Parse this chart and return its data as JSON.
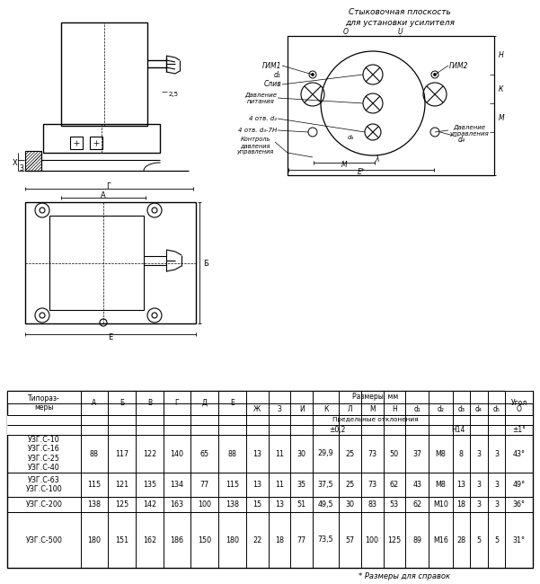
{
  "footnote": "* Размеры для справок",
  "rows": [
    [
      "УЗГ.С-10\nУЗГ.С-16\nУЗГ.С-25\nУЗГ.С-40",
      "88",
      "117",
      "122",
      "140",
      "65",
      "88",
      "13",
      "11",
      "30",
      "29,9",
      "25",
      "73",
      "50",
      "37",
      "М8",
      "8",
      "3",
      "3",
      "43°"
    ],
    [
      "УЗГ.С-63\nУЗГ.С-100",
      "115",
      "121",
      "135",
      "134",
      "77",
      "115",
      "13",
      "11",
      "35",
      "37,5",
      "25",
      "73",
      "62",
      "43",
      "М8",
      "13",
      "3",
      "3",
      "49°"
    ],
    [
      "УЗГ.С-200",
      "138",
      "125",
      "142",
      "163",
      "100",
      "138",
      "15",
      "13",
      "51",
      "49,5",
      "30",
      "83",
      "53",
      "62",
      "М10",
      "18",
      "3",
      "3",
      "36°"
    ],
    [
      "УЗГ.С-500",
      "180",
      "151",
      "162",
      "186",
      "150",
      "180",
      "22",
      "18",
      "77",
      "73,5",
      "57",
      "100",
      "125",
      "89",
      "М16",
      "28",
      "5",
      "5",
      "31°"
    ]
  ],
  "bg_color": "#ffffff",
  "line_color": "#000000",
  "text_color": "#000000"
}
